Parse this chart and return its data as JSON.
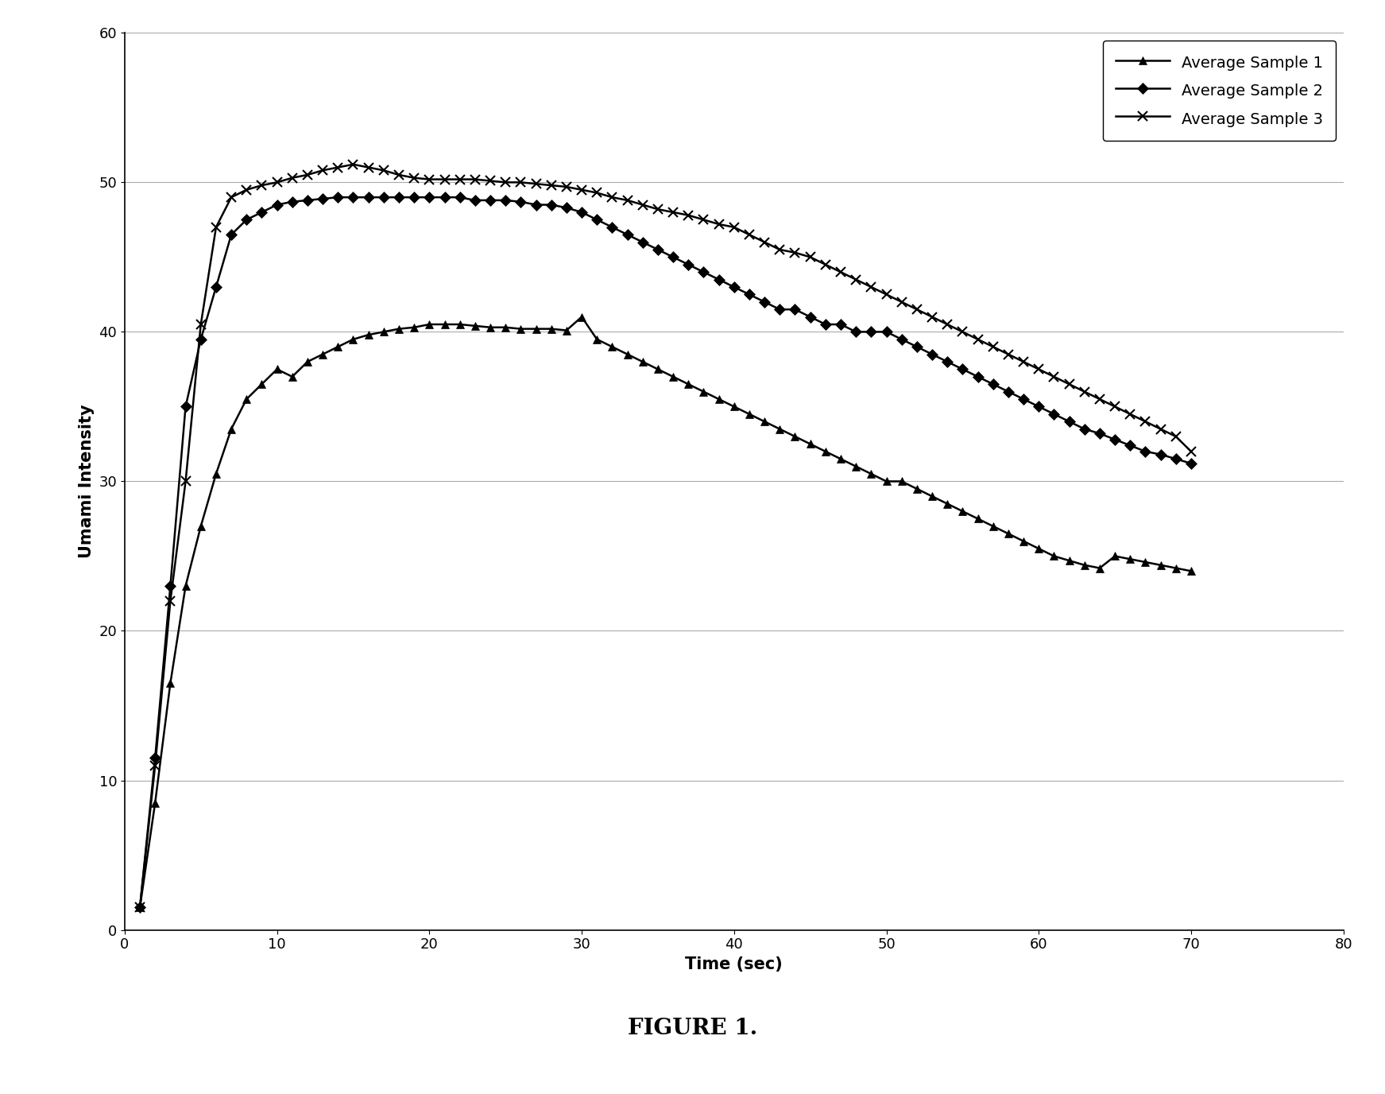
{
  "title": "FIGURE 1.",
  "xlabel": "Time (sec)",
  "ylabel": "Umami Intensity",
  "xlim": [
    0,
    80
  ],
  "ylim": [
    0,
    60
  ],
  "xticks": [
    0,
    10,
    20,
    30,
    40,
    50,
    60,
    70,
    80
  ],
  "yticks": [
    0,
    10,
    20,
    30,
    40,
    50,
    60
  ],
  "legend_labels": [
    "Average Sample 1",
    "Average Sample 2",
    "Average Sample 3"
  ],
  "sample1_x": [
    1,
    2,
    3,
    4,
    5,
    6,
    7,
    8,
    9,
    10,
    11,
    12,
    13,
    14,
    15,
    16,
    17,
    18,
    19,
    20,
    21,
    22,
    23,
    24,
    25,
    26,
    27,
    28,
    29,
    30,
    31,
    32,
    33,
    34,
    35,
    36,
    37,
    38,
    39,
    40,
    41,
    42,
    43,
    44,
    45,
    46,
    47,
    48,
    49,
    50,
    51,
    52,
    53,
    54,
    55,
    56,
    57,
    58,
    59,
    60,
    61,
    62,
    63,
    64,
    65,
    66,
    67,
    68,
    69,
    70
  ],
  "sample1_y": [
    1.5,
    8.5,
    16.5,
    23.0,
    27.0,
    30.5,
    33.5,
    35.5,
    36.5,
    37.5,
    37.0,
    38.0,
    38.5,
    39.0,
    39.5,
    39.8,
    40.0,
    40.2,
    40.3,
    40.5,
    40.5,
    40.5,
    40.4,
    40.3,
    40.3,
    40.2,
    40.2,
    40.2,
    40.1,
    41.0,
    39.5,
    39.0,
    38.5,
    38.0,
    37.5,
    37.0,
    36.5,
    36.0,
    35.5,
    35.0,
    34.5,
    34.0,
    33.5,
    33.0,
    32.5,
    32.0,
    31.5,
    31.0,
    30.5,
    30.0,
    30.0,
    29.5,
    29.0,
    28.5,
    28.0,
    27.5,
    27.0,
    26.5,
    26.0,
    25.5,
    25.0,
    24.7,
    24.4,
    24.2,
    25.0,
    24.8,
    24.6,
    24.4,
    24.2,
    24.0
  ],
  "sample2_x": [
    1,
    2,
    3,
    4,
    5,
    6,
    7,
    8,
    9,
    10,
    11,
    12,
    13,
    14,
    15,
    16,
    17,
    18,
    19,
    20,
    21,
    22,
    23,
    24,
    25,
    26,
    27,
    28,
    29,
    30,
    31,
    32,
    33,
    34,
    35,
    36,
    37,
    38,
    39,
    40,
    41,
    42,
    43,
    44,
    45,
    46,
    47,
    48,
    49,
    50,
    51,
    52,
    53,
    54,
    55,
    56,
    57,
    58,
    59,
    60,
    61,
    62,
    63,
    64,
    65,
    66,
    67,
    68,
    69,
    70
  ],
  "sample2_y": [
    1.5,
    11.5,
    23.0,
    35.0,
    39.5,
    43.0,
    46.5,
    47.5,
    48.0,
    48.5,
    48.7,
    48.8,
    48.9,
    49.0,
    49.0,
    49.0,
    49.0,
    49.0,
    49.0,
    49.0,
    49.0,
    49.0,
    48.8,
    48.8,
    48.8,
    48.7,
    48.5,
    48.5,
    48.3,
    48.0,
    47.5,
    47.0,
    46.5,
    46.0,
    45.5,
    45.0,
    44.5,
    44.0,
    43.5,
    43.0,
    42.5,
    42.0,
    41.5,
    41.5,
    41.0,
    40.5,
    40.5,
    40.0,
    40.0,
    40.0,
    39.5,
    39.0,
    38.5,
    38.0,
    37.5,
    37.0,
    36.5,
    36.0,
    35.5,
    35.0,
    34.5,
    34.0,
    33.5,
    33.2,
    32.8,
    32.4,
    32.0,
    31.8,
    31.5,
    31.2
  ],
  "sample3_x": [
    1,
    2,
    3,
    4,
    5,
    6,
    7,
    8,
    9,
    10,
    11,
    12,
    13,
    14,
    15,
    16,
    17,
    18,
    19,
    20,
    21,
    22,
    23,
    24,
    25,
    26,
    27,
    28,
    29,
    30,
    31,
    32,
    33,
    34,
    35,
    36,
    37,
    38,
    39,
    40,
    41,
    42,
    43,
    44,
    45,
    46,
    47,
    48,
    49,
    50,
    51,
    52,
    53,
    54,
    55,
    56,
    57,
    58,
    59,
    60,
    61,
    62,
    63,
    64,
    65,
    66,
    67,
    68,
    69,
    70
  ],
  "sample3_y": [
    1.5,
    11.0,
    22.0,
    30.0,
    40.5,
    47.0,
    49.0,
    49.5,
    49.8,
    50.0,
    50.3,
    50.5,
    50.8,
    51.0,
    51.2,
    51.0,
    50.8,
    50.5,
    50.3,
    50.2,
    50.2,
    50.2,
    50.2,
    50.1,
    50.0,
    50.0,
    49.9,
    49.8,
    49.7,
    49.5,
    49.3,
    49.0,
    48.8,
    48.5,
    48.2,
    48.0,
    47.8,
    47.5,
    47.2,
    47.0,
    46.5,
    46.0,
    45.5,
    45.3,
    45.0,
    44.5,
    44.0,
    43.5,
    43.0,
    42.5,
    42.0,
    41.5,
    41.0,
    40.5,
    40.0,
    39.5,
    39.0,
    38.5,
    38.0,
    37.5,
    37.0,
    36.5,
    36.0,
    35.5,
    35.0,
    34.5,
    34.0,
    33.5,
    33.0,
    32.0
  ],
  "line_color": "#000000",
  "background_color": "#ffffff",
  "figure_label_fontsize": 20,
  "axis_label_fontsize": 15,
  "tick_fontsize": 13,
  "legend_fontsize": 14
}
